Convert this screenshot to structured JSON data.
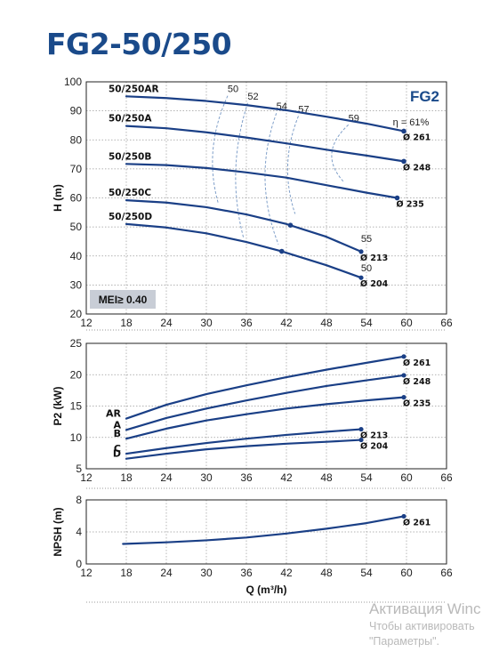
{
  "page": {
    "title": "FG2-50/250"
  },
  "watermark": {
    "line1": "Активация Winc",
    "line2": "Чтобы активировать",
    "line3": "\"Параметры\"."
  },
  "colors": {
    "curve": "#1a3f86",
    "title": "#1a4a8a",
    "grid": "#9a9a9a",
    "eff": "#7f9fc9",
    "badge": "#c8cdd6",
    "watermark": "#b9b9b9"
  },
  "chart_data": [
    {
      "id": "head",
      "type": "line",
      "ylabel": "H (m)",
      "xlim": [
        12,
        66
      ],
      "ylim": [
        20,
        100
      ],
      "xticks": [
        "12",
        "18",
        "24",
        "30",
        "36",
        "42",
        "48",
        "54",
        "60",
        "66"
      ],
      "yticks": [
        "20",
        "30",
        "40",
        "50",
        "60",
        "70",
        "80",
        "90",
        "100"
      ],
      "grid": true,
      "badge_top": "FG2",
      "badge_bottom": "MEI≥ 0.40",
      "eta_label": "η = 61%",
      "series": [
        {
          "name": "50/250AR",
          "end_label": "Ø 261",
          "points": [
            [
              18,
              95
            ],
            [
              24,
              94.4
            ],
            [
              30,
              93.4
            ],
            [
              36,
              92
            ],
            [
              42,
              90.2
            ],
            [
              48,
              88
            ],
            [
              54,
              85.6
            ],
            [
              59.6,
              83
            ]
          ]
        },
        {
          "name": "50/250A",
          "end_label": "Ø 248",
          "points": [
            [
              18,
              84.8
            ],
            [
              24,
              84
            ],
            [
              30,
              82.6
            ],
            [
              36,
              80.8
            ],
            [
              42,
              78.8
            ],
            [
              48,
              76.6
            ],
            [
              54,
              74.6
            ],
            [
              59.6,
              72.6
            ]
          ]
        },
        {
          "name": "50/250B",
          "end_label": "Ø 235",
          "points": [
            [
              18,
              71.7
            ],
            [
              24,
              71.3
            ],
            [
              30,
              70.3
            ],
            [
              36,
              68.8
            ],
            [
              42,
              67
            ],
            [
              48,
              64.4
            ],
            [
              54,
              61.8
            ],
            [
              58.6,
              60
            ]
          ]
        },
        {
          "name": "50/250C",
          "end_label": "Ø 213",
          "points": [
            [
              18,
              59.2
            ],
            [
              24,
              58.4
            ],
            [
              30,
              56.8
            ],
            [
              36,
              54.3
            ],
            [
              42,
              51
            ],
            [
              48,
              46.6
            ],
            [
              53.2,
              41.5
            ]
          ]
        },
        {
          "name": "50/250D",
          "end_label": "Ø 204",
          "points": [
            [
              18,
              51
            ],
            [
              24,
              49.8
            ],
            [
              30,
              47.8
            ],
            [
              36,
              44.8
            ],
            [
              41.3,
              41.6
            ],
            [
              48,
              36.8
            ],
            [
              53.2,
              32.5
            ]
          ]
        }
      ],
      "markers": [
        [
          59.6,
          83
        ],
        [
          59.6,
          72.6
        ],
        [
          58.6,
          60
        ],
        [
          42.6,
          50.6
        ],
        [
          41.3,
          41.6
        ]
      ],
      "efficiency": {
        "labels": [
          "50",
          "52",
          "54",
          "57",
          "59"
        ],
        "side_labels": [
          "55",
          "50"
        ],
        "arcs": [
          {
            "label": "50",
            "top": [
              33.2,
              95.2
            ],
            "bottom": [
              31.8,
              58
            ],
            "bulge": 31.0
          },
          {
            "label": "52",
            "top": [
              36.2,
              92.7
            ],
            "bottom": [
              35.6,
              46
            ],
            "bulge": 34.4
          },
          {
            "label": "54",
            "top": [
              40.5,
              89.2
            ],
            "bottom": [
              40.8,
              44
            ],
            "bulge": 38.8
          },
          {
            "label": "57",
            "top": [
              43.8,
              88.2
            ],
            "bottom": [
              43.3,
              54.5
            ],
            "bulge": 42.2
          },
          {
            "label": "59",
            "top": [
              51.3,
              85.2
            ],
            "bottom": [
              50.6,
              65.5
            ],
            "bulge": 48.8
          }
        ]
      }
    },
    {
      "id": "power",
      "type": "line",
      "ylabel": "P2 (kW)",
      "xlim": [
        12,
        66
      ],
      "ylim": [
        5,
        25
      ],
      "xticks": [
        "12",
        "18",
        "24",
        "30",
        "36",
        "42",
        "48",
        "54",
        "60",
        "66"
      ],
      "yticks": [
        "5",
        "10",
        "15",
        "20",
        "25"
      ],
      "grid": true,
      "series": [
        {
          "name": "AR",
          "end_label": "Ø 261",
          "points": [
            [
              18,
              13
            ],
            [
              24,
              15.2
            ],
            [
              30,
              16.9
            ],
            [
              36,
              18.3
            ],
            [
              42,
              19.6
            ],
            [
              48,
              20.8
            ],
            [
              54,
              21.9
            ],
            [
              59.6,
              22.9
            ]
          ]
        },
        {
          "name": "A",
          "end_label": "Ø 248",
          "points": [
            [
              18,
              11.2
            ],
            [
              24,
              13.1
            ],
            [
              30,
              14.6
            ],
            [
              36,
              15.9
            ],
            [
              42,
              17.1
            ],
            [
              48,
              18.2
            ],
            [
              54,
              19.1
            ],
            [
              59.6,
              19.9
            ]
          ]
        },
        {
          "name": "B",
          "end_label": "Ø 235",
          "points": [
            [
              18,
              9.8
            ],
            [
              24,
              11.4
            ],
            [
              30,
              12.7
            ],
            [
              36,
              13.7
            ],
            [
              42,
              14.6
            ],
            [
              48,
              15.3
            ],
            [
              54,
              15.9
            ],
            [
              59.6,
              16.4
            ]
          ]
        },
        {
          "name": "C",
          "end_label": "Ø 213",
          "points": [
            [
              18,
              7.4
            ],
            [
              24,
              8.3
            ],
            [
              30,
              9.1
            ],
            [
              36,
              9.8
            ],
            [
              42,
              10.4
            ],
            [
              48,
              10.9
            ],
            [
              53.2,
              11.3
            ]
          ]
        },
        {
          "name": "D",
          "end_label": "Ø 204",
          "points": [
            [
              18,
              6.6
            ],
            [
              24,
              7.4
            ],
            [
              30,
              8.1
            ],
            [
              36,
              8.6
            ],
            [
              42,
              9
            ],
            [
              48,
              9.3
            ],
            [
              53.2,
              9.6
            ]
          ]
        }
      ]
    },
    {
      "id": "npsh",
      "type": "line",
      "ylabel": "NPSH (m)",
      "xlabel": "Q (m³/h)",
      "xlim": [
        12,
        66
      ],
      "ylim": [
        0,
        8
      ],
      "xticks": [
        "12",
        "18",
        "24",
        "30",
        "36",
        "42",
        "48",
        "54",
        "60",
        "66"
      ],
      "yticks": [
        "0",
        "4",
        "8"
      ],
      "grid": true,
      "series": [
        {
          "name": "",
          "end_label": "Ø 261",
          "points": [
            [
              17.5,
              2.5
            ],
            [
              24,
              2.7
            ],
            [
              30,
              2.95
            ],
            [
              36,
              3.3
            ],
            [
              42,
              3.8
            ],
            [
              48,
              4.4
            ],
            [
              54,
              5.1
            ],
            [
              59.6,
              5.95
            ]
          ]
        }
      ]
    }
  ]
}
